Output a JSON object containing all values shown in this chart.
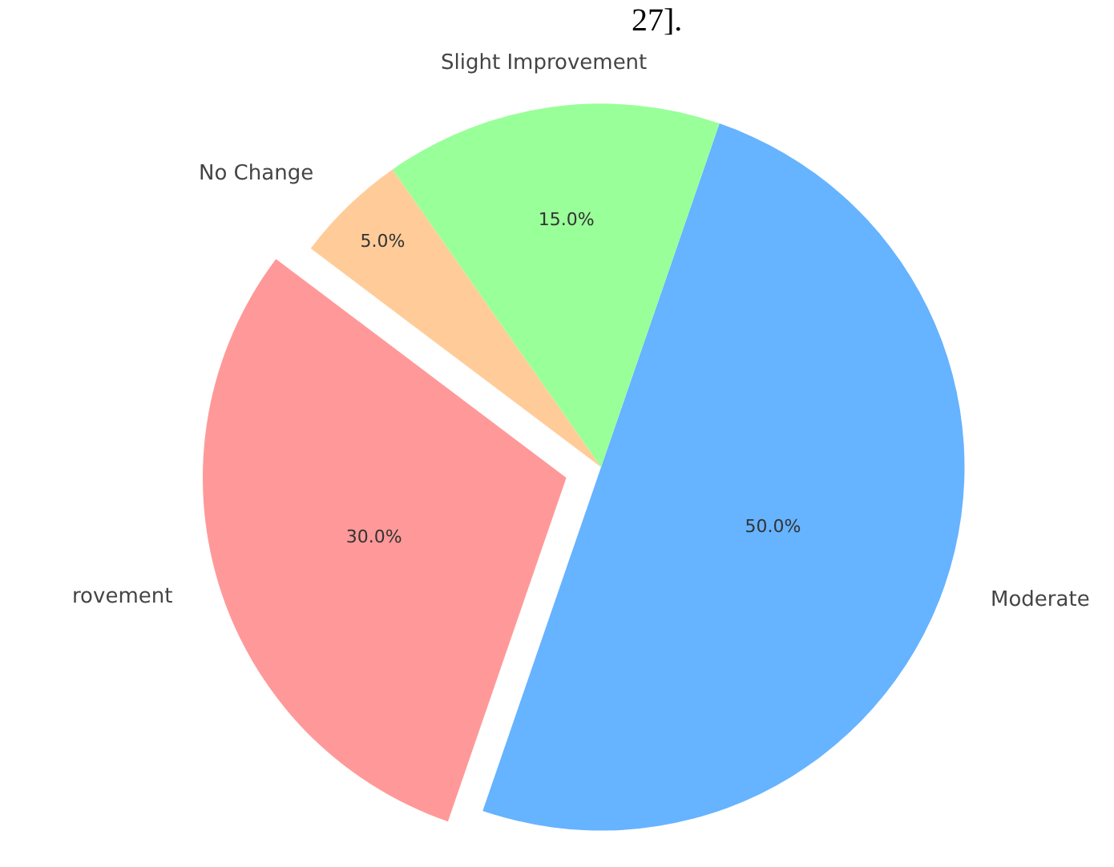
{
  "chart_data": {
    "type": "pie",
    "title": "27].",
    "categories": [
      "Moderate",
      "rovement",
      "No Change",
      "Slight Improvement"
    ],
    "values": [
      50,
      30,
      5,
      15
    ],
    "colors": [
      "#66b3ff",
      "#ff9999",
      "#ffcc99",
      "#99ff99"
    ],
    "value_labels": [
      "50.0%",
      "30.0%",
      "5.0%",
      "15.0%"
    ],
    "legend": false
  }
}
